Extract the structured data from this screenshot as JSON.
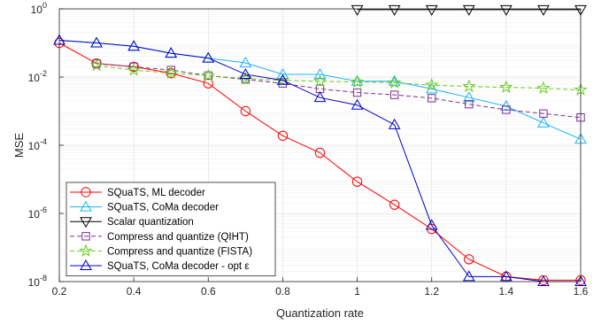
{
  "chart_data": {
    "type": "line",
    "xlabel": "Quantization rate",
    "ylabel": "MSE",
    "xlim": [
      0.2,
      1.6
    ],
    "ylim": [
      1e-08,
      1
    ],
    "yscale": "log",
    "grid": true,
    "legend_position": "bottom-left",
    "x_ticks": [
      "0.2",
      "0.4",
      "0.6",
      "0.8",
      "1",
      "1.2",
      "1.4",
      "1.6"
    ],
    "y_ticks": [
      {
        "value": 1e-08,
        "base": "10",
        "exp": "-8"
      },
      {
        "value": 1e-06,
        "base": "10",
        "exp": "-6"
      },
      {
        "value": 0.0001,
        "base": "10",
        "exp": "-4"
      },
      {
        "value": 0.01,
        "base": "10",
        "exp": "-2"
      },
      {
        "value": 1,
        "base": "10",
        "exp": "0"
      }
    ],
    "series": [
      {
        "name": "SQuaTS, ML decoder",
        "color": "#ff0000",
        "marker": "circle",
        "dash": "solid",
        "x": [
          0.2,
          0.3,
          0.4,
          0.5,
          0.6,
          0.7,
          0.8,
          0.9,
          1.0,
          1.1,
          1.2,
          1.3,
          1.4,
          1.5,
          1.6
        ],
        "y": [
          0.1,
          0.025,
          0.02,
          0.013,
          0.0065,
          0.001,
          0.00019,
          6e-05,
          8.5e-06,
          1.8e-06,
          3.5e-07,
          4.5e-08,
          1.4e-08,
          1.1e-08,
          1.1e-08
        ]
      },
      {
        "name": "SQuaTS, CoMa decoder",
        "color": "#1ab2ff",
        "marker": "triangle",
        "dash": "solid",
        "x": [
          0.2,
          0.3,
          0.4,
          0.5,
          0.6,
          0.7,
          0.8,
          0.9,
          1.0,
          1.1,
          1.2,
          1.3,
          1.4,
          1.5,
          1.6
        ],
        "y": [
          0.12,
          0.1,
          0.08,
          0.05,
          0.036,
          0.026,
          0.012,
          0.012,
          0.0075,
          0.0075,
          0.0045,
          0.0025,
          0.0014,
          0.00045,
          0.00015
        ]
      },
      {
        "name": "Scalar quantization",
        "color": "#000000",
        "marker": "triangle-down",
        "dash": "solid",
        "x": [
          1.0,
          1.1,
          1.2,
          1.3,
          1.4,
          1.5,
          1.6
        ],
        "y": [
          0.95,
          0.95,
          0.95,
          0.95,
          0.95,
          0.95,
          0.95
        ]
      },
      {
        "name": "Compress and quantize (QIHT)",
        "color": "#7e2f8e",
        "marker": "square",
        "dash": "dashed",
        "x": [
          0.3,
          0.4,
          0.5,
          0.6,
          0.7,
          0.8,
          0.9,
          1.0,
          1.1,
          1.2,
          1.3,
          1.4,
          1.5,
          1.6
        ],
        "y": [
          0.025,
          0.02,
          0.016,
          0.011,
          0.0085,
          0.0065,
          0.0045,
          0.0035,
          0.003,
          0.0024,
          0.0016,
          0.0011,
          0.00085,
          0.00065
        ]
      },
      {
        "name": "Compress and quantize (FISTA)",
        "color": "#66cc1a",
        "marker": "star",
        "dash": "dashed",
        "x": [
          0.3,
          0.4,
          0.5,
          0.6,
          0.7,
          0.8,
          0.9,
          1.0,
          1.1,
          1.2,
          1.3,
          1.4,
          1.5,
          1.6
        ],
        "y": [
          0.022,
          0.016,
          0.013,
          0.011,
          0.009,
          0.008,
          0.0075,
          0.0072,
          0.0068,
          0.0058,
          0.0053,
          0.005,
          0.0047,
          0.0042
        ]
      },
      {
        "name": "SQuaTS, CoMa decoder - opt ε",
        "color": "#0000cc",
        "marker": "triangle",
        "dash": "solid",
        "x": [
          0.2,
          0.3,
          0.4,
          0.5,
          0.6,
          0.7,
          0.8,
          0.9,
          1.0,
          1.1,
          1.2,
          1.3,
          1.4,
          1.5,
          1.6
        ],
        "y": [
          0.12,
          0.1,
          0.08,
          0.05,
          0.036,
          0.012,
          0.008,
          0.0025,
          0.0015,
          0.0004,
          4.5e-07,
          1.4e-08,
          1.4e-08,
          1e-08,
          1e-08
        ]
      }
    ]
  }
}
